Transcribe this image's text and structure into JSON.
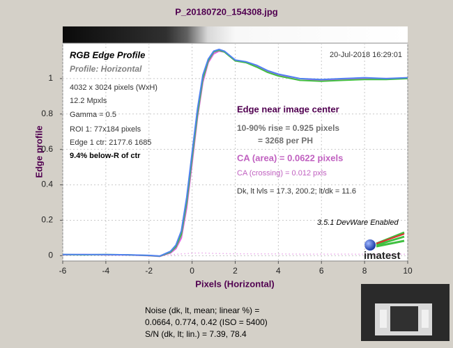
{
  "chart_data": {
    "type": "line",
    "title": "P_20180720_154308.jpg",
    "xlabel": "Pixels (Horizontal)",
    "ylabel": "Edge profile",
    "xlim": [
      -6,
      10
    ],
    "ylim": [
      -0.03,
      1.2
    ],
    "xticks": [
      -6,
      -4,
      -2,
      0,
      2,
      4,
      6,
      8,
      10
    ],
    "yticks": [
      0,
      0.2,
      0.4,
      0.6,
      0.8,
      1
    ],
    "grid": true,
    "x": [
      -6,
      -5,
      -4,
      -3,
      -2,
      -1.5,
      -1,
      -0.75,
      -0.5,
      -0.25,
      0,
      0.25,
      0.5,
      0.75,
      1,
      1.25,
      1.5,
      2,
      2.5,
      3,
      3.5,
      4,
      5,
      6,
      7,
      8,
      9,
      10
    ],
    "series": [
      {
        "color": "#e060e0",
        "values": [
          0.005,
          0.006,
          0.005,
          0.004,
          0.0,
          -0.004,
          0.015,
          0.04,
          0.1,
          0.27,
          0.52,
          0.78,
          0.98,
          1.09,
          1.14,
          1.155,
          1.15,
          1.1,
          1.09,
          1.07,
          1.04,
          1.02,
          0.99,
          0.99,
          0.995,
          1.0,
          1.0,
          1.0
        ]
      },
      {
        "color": "#40c040",
        "values": [
          0.006,
          0.005,
          0.006,
          0.005,
          0.001,
          -0.003,
          0.02,
          0.05,
          0.12,
          0.3,
          0.55,
          0.8,
          1.0,
          1.1,
          1.15,
          1.16,
          1.15,
          1.1,
          1.09,
          1.065,
          1.035,
          1.015,
          0.99,
          0.985,
          0.99,
          0.995,
          0.995,
          1.0
        ]
      },
      {
        "color": "#5080f0",
        "values": [
          0.007,
          0.006,
          0.006,
          0.005,
          0.002,
          -0.002,
          0.025,
          0.06,
          0.14,
          0.33,
          0.58,
          0.83,
          1.02,
          1.11,
          1.155,
          1.165,
          1.155,
          1.105,
          1.095,
          1.075,
          1.045,
          1.025,
          1.0,
          0.995,
          1.0,
          1.005,
          1.0,
          1.005
        ]
      },
      {
        "color": "#e080e0",
        "dash": true,
        "values": [
          null,
          null,
          null,
          null,
          null,
          null,
          0.005,
          0.008,
          0.01,
          0.012,
          0.014,
          0.015,
          0.015,
          0.014,
          0.013,
          0.012,
          0.012,
          0.011,
          0.011,
          0.01,
          0.01,
          0.01,
          0.009,
          0.009,
          0.009,
          0.008,
          0.008,
          0.008
        ]
      }
    ],
    "annotations": [
      "RGB Edge Profile",
      "Profile: Horizontal",
      "20-Jul-2018 16:29:01",
      "4032 x 3024 pixels (WxH)",
      "12.2 Mpxls",
      "Gamma = 0.5",
      "ROI 1: 77x184 pixels",
      "Edge 1 ctr: 2177.6  1685",
      "9.4% below-R of ctr",
      "Edge near image center",
      "10-90% rise = 0.925 pixels",
      "= 3268 per PH",
      "CA (area) = 0.0622 pixels",
      "CA (crossing) = 0.012 pxls",
      "Dk, lt lvls = 17.3, 200.2;  lt/dk = 11.6",
      "3.5.1  DevWare Enabled",
      "imatest",
      "Noise (dk, lt, mean; linear %) =",
      "0.0664,  0.774,  0.42  (ISO =  5400)",
      "S/N (dk, lt; lin.) = 7.39,  78.4"
    ]
  }
}
